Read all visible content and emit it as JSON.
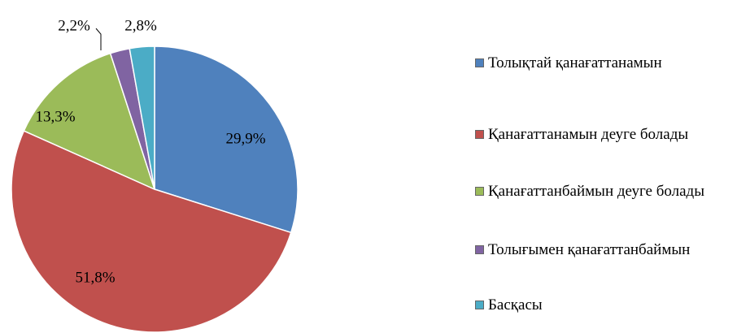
{
  "chart_data": {
    "type": "pie",
    "categories": [
      "Толықтай қанағаттанамын",
      "Қанағаттанамын деуге болады",
      "Қанағаттанбаймын деуге болады",
      "Толығымен қанағаттанбаймын",
      "Басқасы"
    ],
    "values": [
      29.9,
      51.8,
      13.3,
      2.2,
      2.8
    ],
    "value_labels": [
      "29,9%",
      "51,8%",
      "13,3%",
      "2,2%",
      "2,8%"
    ],
    "colors": [
      "#4f81bd",
      "#c0504d",
      "#9bbb59",
      "#8064a2",
      "#4bacc6"
    ],
    "legend": "right"
  }
}
